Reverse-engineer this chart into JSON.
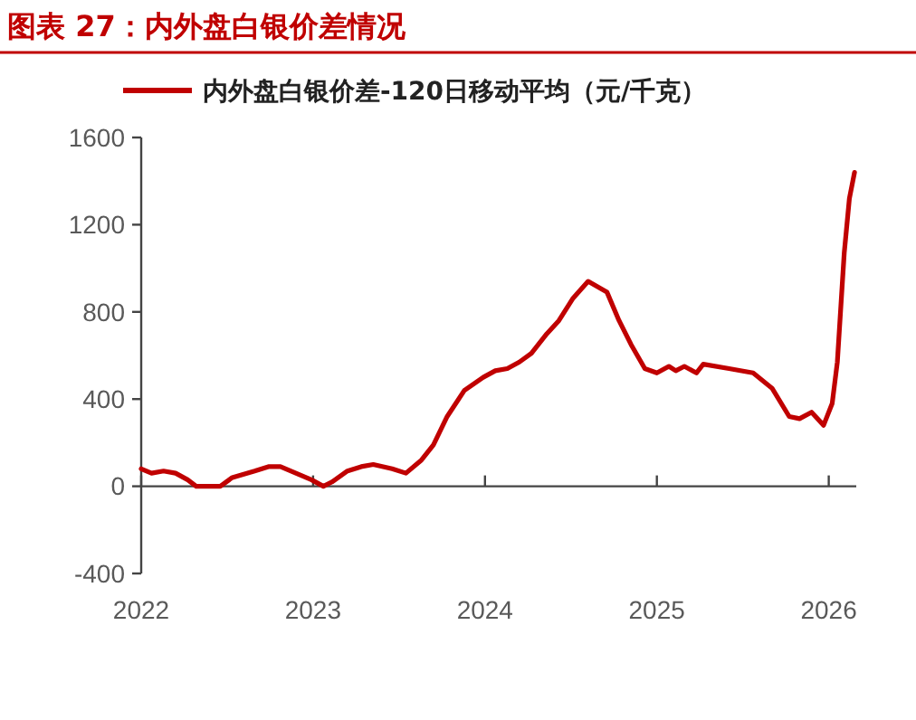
{
  "chart_data": {
    "type": "line",
    "title": "图表 27：内外盘白银价差情况",
    "x": [
      2022.0,
      2022.06,
      2022.13,
      2022.2,
      2022.27,
      2022.32,
      2022.39,
      2022.46,
      2022.53,
      2022.66,
      2022.74,
      2022.81,
      2022.9,
      2022.99,
      2023.06,
      2023.11,
      2023.2,
      2023.28,
      2023.35,
      2023.46,
      2023.54,
      2023.63,
      2023.7,
      2023.78,
      2023.88,
      2023.99,
      2024.06,
      2024.13,
      2024.2,
      2024.27,
      2024.36,
      2024.43,
      2024.51,
      2024.6,
      2024.71,
      2024.78,
      2024.85,
      2024.93,
      2025.0,
      2025.07,
      2025.11,
      2025.16,
      2025.23,
      2025.27,
      2025.42,
      2025.56,
      2025.67,
      2025.77,
      2025.83,
      2025.9,
      2025.97,
      2026.02,
      2026.05,
      2026.09,
      2026.12,
      2026.15
    ],
    "series": [
      {
        "name": "内外盘白银价差-120日移动平均（元/千克）",
        "color": "#c00000",
        "values": [
          80,
          60,
          70,
          60,
          30,
          0,
          0,
          0,
          40,
          70,
          90,
          90,
          60,
          30,
          0,
          20,
          70,
          90,
          100,
          80,
          60,
          120,
          190,
          320,
          440,
          500,
          530,
          540,
          570,
          610,
          700,
          760,
          860,
          940,
          890,
          760,
          650,
          540,
          520,
          550,
          530,
          550,
          520,
          560,
          540,
          520,
          450,
          320,
          310,
          340,
          280,
          380,
          570,
          1070,
          1320,
          1440
        ]
      }
    ],
    "xlim": [
      2022,
      2026.16
    ],
    "xticks": [
      2022,
      2023,
      2024,
      2025,
      2026
    ],
    "ylim": [
      -400,
      1600
    ],
    "yticks": [
      -400,
      0,
      400,
      800,
      1200,
      1600
    ],
    "legend": "top"
  }
}
